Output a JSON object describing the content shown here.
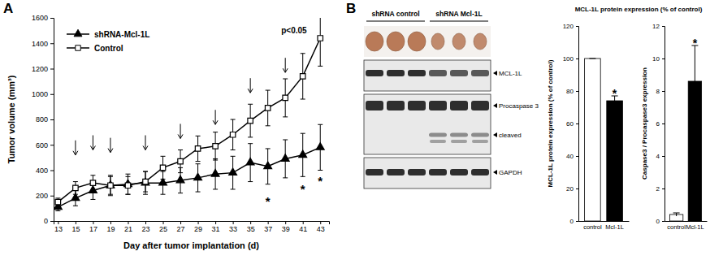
{
  "chart_data": [
    {
      "type": "line",
      "panel": "A",
      "xlabel": "Day after tumor implantation (d)",
      "ylabel": "Tumor volume (mm³)",
      "x": [
        13,
        15,
        17,
        19,
        21,
        23,
        25,
        27,
        29,
        31,
        33,
        35,
        37,
        39,
        41,
        43
      ],
      "xlim": [
        12.5,
        44
      ],
      "xticks": [
        13,
        15,
        17,
        19,
        21,
        23,
        25,
        27,
        29,
        31,
        33,
        35,
        37,
        39,
        41,
        43
      ],
      "ylim": [
        0,
        1600
      ],
      "yticks": [
        0,
        200,
        400,
        600,
        800,
        1000,
        1200,
        1400,
        1600
      ],
      "legend": "upper left",
      "series": [
        {
          "name": "shRNA-Mcl-1L",
          "color": "#000000",
          "marker": "triangle",
          "values": [
            110,
            180,
            240,
            280,
            290,
            300,
            300,
            320,
            340,
            370,
            380,
            460,
            430,
            490,
            520,
            580
          ],
          "errors": [
            30,
            60,
            70,
            80,
            80,
            90,
            90,
            100,
            110,
            120,
            130,
            150,
            140,
            150,
            170,
            180
          ]
        },
        {
          "name": "Control",
          "color": "#000000",
          "marker": "open-square",
          "values": [
            150,
            260,
            300,
            280,
            280,
            310,
            420,
            470,
            570,
            590,
            680,
            790,
            890,
            970,
            1140,
            1440
          ],
          "errors": [
            30,
            50,
            60,
            70,
            70,
            80,
            90,
            90,
            100,
            110,
            120,
            130,
            140,
            150,
            180,
            220
          ]
        }
      ],
      "arrows": {
        "x": [
          15,
          17,
          19,
          23,
          27,
          31,
          35,
          39
        ],
        "y": [
          520,
          560,
          540,
          560,
          650,
          760,
          1010,
          1170
        ]
      },
      "annotations": [
        {
          "text": "p<0.05",
          "x": 40,
          "y": 1480
        },
        {
          "text": "*",
          "x": 37,
          "y": 170
        },
        {
          "text": "*",
          "x": 41,
          "y": 270
        },
        {
          "text": "*",
          "x": 43,
          "y": 330
        }
      ]
    },
    {
      "type": "bar",
      "title": "MCL-1L protein expression (% of control)",
      "ylabel": "MCL-1L protein expression (% of control)",
      "categories": [
        "control",
        "Mcl-1L"
      ],
      "values": [
        100,
        74
      ],
      "errors": [
        0,
        3
      ],
      "colors": [
        "#ffffff",
        "#000000"
      ],
      "ylim": [
        0,
        120
      ],
      "yticks": [
        0,
        20,
        40,
        60,
        80,
        100,
        120
      ],
      "annotations": [
        {
          "text": "*",
          "category": 1,
          "y": 80
        }
      ]
    },
    {
      "type": "bar",
      "ylabel": "Caspase3 / Procaspase3 expression",
      "categories": [
        "control",
        "Mcl-1L"
      ],
      "values": [
        0.4,
        8.6
      ],
      "errors": [
        0.1,
        2.2
      ],
      "colors": [
        "#ffffff",
        "#000000"
      ],
      "ylim": [
        0,
        12
      ],
      "yticks": [
        0,
        2,
        4,
        6,
        8,
        10,
        12
      ],
      "annotations": [
        {
          "text": "*",
          "category": 1,
          "y": 11.1
        }
      ]
    }
  ],
  "blot": {
    "panel": "B",
    "groups": [
      "shRNA control",
      "shRNA Mcl-1L"
    ],
    "bands": [
      "MCL-1L",
      "Procaspase 3",
      "cleaved",
      "GAPDH"
    ]
  }
}
